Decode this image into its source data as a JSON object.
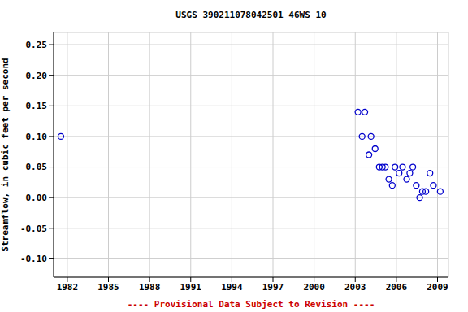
{
  "chart_data": {
    "type": "scatter",
    "title": "USGS 390211078042501 46WS 10",
    "subtitle": "---- Provisional Data Subject to Revision ----",
    "y_label": "Streamflow, in cubic feet per second",
    "x": [
      1981.53,
      2003.2,
      2003.5,
      2003.7,
      2004.0,
      2004.15,
      2004.45,
      2004.75,
      2004.98,
      2005.2,
      2005.45,
      2005.7,
      2005.9,
      2006.2,
      2006.45,
      2006.75,
      2006.98,
      2007.2,
      2007.45,
      2007.7,
      2007.9,
      2008.15,
      2008.45,
      2008.7,
      2009.2
    ],
    "values": [
      0.1,
      0.14,
      0.1,
      0.14,
      0.07,
      0.1,
      0.08,
      0.05,
      0.05,
      0.05,
      0.03,
      0.02,
      0.05,
      0.04,
      0.05,
      0.03,
      0.04,
      0.05,
      0.02,
      0.0,
      0.01,
      0.01,
      0.04,
      0.02,
      0.01
    ],
    "color": "#0000cc",
    "marker": "open_circle",
    "xlim": [
      1981,
      2009.8
    ],
    "xticks": [
      1982,
      1985,
      1988,
      1991,
      1994,
      1997,
      2000,
      2003,
      2006,
      2009
    ],
    "ylim": [
      -0.13,
      0.27
    ],
    "yticks": [
      {
        "value": -0.1,
        "label": "-0.10"
      },
      -0.05,
      {
        "value": 0,
        "label": "0.00"
      },
      0.05,
      {
        "value": 0.1,
        "label": "0.10"
      },
      0.15,
      {
        "value": 0.2,
        "label": "0.20"
      },
      0.25
    ],
    "grid": true
  }
}
